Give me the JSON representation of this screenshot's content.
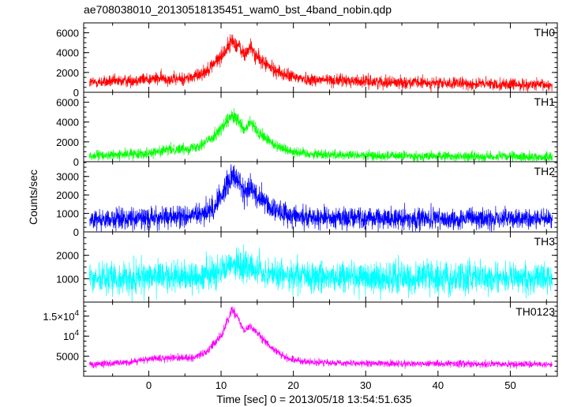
{
  "title": "ae708038010_20130518135451_wam0_bst_4band_nobin.qdp",
  "ylabel": "Counts/sec",
  "xlabel": "Time [sec] 0 = 2013/05/18 13:54:51.635",
  "chart_data": {
    "type": "line",
    "title": "ae708038010_20130518135451_wam0_bst_4band_nobin.qdp",
    "xlabel": "Time [sec] 0 = 2013/05/18 13:54:51.635",
    "ylabel": "Counts/sec",
    "xlim": [
      -9,
      56.5
    ],
    "xticks": [
      0,
      10,
      20,
      30,
      40,
      50
    ],
    "xtick_labels": [
      "0",
      "10",
      "20",
      "30",
      "40",
      "50"
    ],
    "panels": [
      {
        "name": "TH0",
        "color": "#ff0000",
        "ylim": [
          0,
          7000
        ],
        "yticks": [
          0,
          2000,
          4000,
          6000
        ],
        "ytick_labels": [
          "0",
          "2000",
          "4000",
          "6000"
        ],
        "noise": 280,
        "profile": [
          [
            -8,
            1000
          ],
          [
            -4,
            1100
          ],
          [
            -1,
            1300
          ],
          [
            2,
            1400
          ],
          [
            4,
            1300
          ],
          [
            6,
            1500
          ],
          [
            8,
            2200
          ],
          [
            10,
            3600
          ],
          [
            11.5,
            5200
          ],
          [
            12.5,
            4600
          ],
          [
            13.2,
            3700
          ],
          [
            14,
            4600
          ],
          [
            15,
            3500
          ],
          [
            17,
            2400
          ],
          [
            19,
            1700
          ],
          [
            22,
            1300
          ],
          [
            30,
            1100
          ],
          [
            40,
            900
          ],
          [
            50,
            800
          ],
          [
            56,
            700
          ]
        ]
      },
      {
        "name": "TH1",
        "color": "#00ff00",
        "ylim": [
          0,
          7000
        ],
        "yticks": [
          0,
          2000,
          4000,
          6000
        ],
        "ytick_labels": [
          "0",
          "2000",
          "4000",
          "6000"
        ],
        "noise": 220,
        "profile": [
          [
            -8,
            600
          ],
          [
            -4,
            700
          ],
          [
            0,
            900
          ],
          [
            3,
            1200
          ],
          [
            6,
            1400
          ],
          [
            8,
            2000
          ],
          [
            10,
            3300
          ],
          [
            11.5,
            4600
          ],
          [
            12.5,
            4000
          ],
          [
            13.2,
            3000
          ],
          [
            14,
            4000
          ],
          [
            15,
            3000
          ],
          [
            17,
            1900
          ],
          [
            19,
            1200
          ],
          [
            22,
            800
          ],
          [
            30,
            600
          ],
          [
            40,
            550
          ],
          [
            50,
            500
          ],
          [
            56,
            450
          ]
        ]
      },
      {
        "name": "TH2",
        "color": "#0000ff",
        "ylim": [
          0,
          3800
        ],
        "yticks": [
          0,
          1000,
          2000,
          3000
        ],
        "ytick_labels": [
          "0",
          "1000",
          "2000",
          "3000"
        ],
        "noise": 260,
        "profile": [
          [
            -8,
            700
          ],
          [
            -4,
            700
          ],
          [
            0,
            750
          ],
          [
            4,
            800
          ],
          [
            7,
            900
          ],
          [
            9,
            1300
          ],
          [
            10.5,
            2300
          ],
          [
            11.5,
            3200
          ],
          [
            12.5,
            2700
          ],
          [
            13.2,
            2000
          ],
          [
            14,
            2500
          ],
          [
            15,
            1900
          ],
          [
            17,
            1300
          ],
          [
            19,
            950
          ],
          [
            22,
            800
          ],
          [
            30,
            750
          ],
          [
            40,
            700
          ],
          [
            50,
            700
          ],
          [
            56,
            700
          ]
        ]
      },
      {
        "name": "TH3",
        "color": "#00ffff",
        "ylim": [
          0,
          3000
        ],
        "yticks": [
          1000,
          2000
        ],
        "ytick_labels": [
          "1000",
          "2000"
        ],
        "noise": 300,
        "profile": [
          [
            -8,
            1000
          ],
          [
            0,
            1050
          ],
          [
            6,
            1100
          ],
          [
            9,
            1200
          ],
          [
            11.5,
            1700
          ],
          [
            13,
            1450
          ],
          [
            14,
            1500
          ],
          [
            16,
            1250
          ],
          [
            20,
            1100
          ],
          [
            30,
            1050
          ],
          [
            45,
            1050
          ],
          [
            56,
            1050
          ]
        ]
      },
      {
        "name": "TH0123",
        "color": "#ff00ff",
        "ylim": [
          0,
          18500
        ],
        "yticks": [
          5000,
          10000,
          15000
        ],
        "ytick_labels": [
          "5000",
          "10^4",
          "1.5×10^4"
        ],
        "noise": 380,
        "profile": [
          [
            -8,
            3000
          ],
          [
            -4,
            3300
          ],
          [
            0,
            4200
          ],
          [
            3,
            4600
          ],
          [
            6,
            4600
          ],
          [
            8,
            6000
          ],
          [
            10,
            10000
          ],
          [
            11.5,
            16500
          ],
          [
            12.5,
            14000
          ],
          [
            13.2,
            11000
          ],
          [
            14,
            12500
          ],
          [
            15,
            11000
          ],
          [
            17,
            7000
          ],
          [
            19,
            4500
          ],
          [
            22,
            3500
          ],
          [
            30,
            3200
          ],
          [
            40,
            3100
          ],
          [
            50,
            3000
          ],
          [
            56,
            2900
          ]
        ]
      }
    ]
  }
}
